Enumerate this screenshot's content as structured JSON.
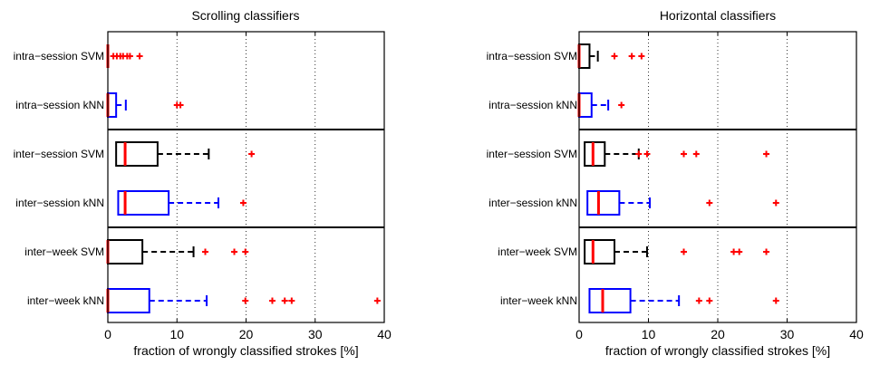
{
  "chart_data": [
    {
      "type": "boxplot",
      "title": "Scrolling classifiers",
      "xlabel": "fraction of wrongly classified strokes [%]",
      "ylabel": "",
      "xlim": [
        0,
        40
      ],
      "xticks": [
        "0",
        "10",
        "20",
        "30",
        "40"
      ],
      "grid": "vertical dotted",
      "group_separators_after": [
        2,
        4
      ],
      "categories": [
        "intra−session SVM",
        "intra−session kNN",
        "inter−session SVM",
        "inter−session kNN",
        "inter−week SVM",
        "inter−week kNN"
      ],
      "boxes": [
        {
          "label": "intra−session SVM",
          "color": "#000000",
          "whisker_low": 0,
          "q1": 0,
          "median": 0,
          "q3": 0,
          "whisker_high": 0,
          "outliers": [
            0.8,
            1.3,
            1.8,
            2.2,
            2.8,
            3.2,
            4.6
          ]
        },
        {
          "label": "intra−session kNN",
          "color": "#0000ff",
          "whisker_low": 0,
          "q1": 0,
          "median": 0,
          "q3": 1.2,
          "whisker_high": 2.6,
          "outliers": [
            10.0,
            10.5
          ]
        },
        {
          "label": "inter−session SVM",
          "color": "#000000",
          "whisker_low": 1.2,
          "q1": 1.2,
          "median": 2.5,
          "q3": 7.2,
          "whisker_high": 14.6,
          "outliers": [
            20.8
          ]
        },
        {
          "label": "inter−session kNN",
          "color": "#0000ff",
          "whisker_low": 1.5,
          "q1": 1.5,
          "median": 2.5,
          "q3": 8.8,
          "whisker_high": 16.0,
          "outliers": [
            19.6
          ]
        },
        {
          "label": "inter−week SVM",
          "color": "#000000",
          "whisker_low": 0,
          "q1": 0,
          "median": 0,
          "q3": 5.0,
          "whisker_high": 12.4,
          "outliers": [
            14.1,
            18.3,
            19.9
          ]
        },
        {
          "label": "inter−week kNN",
          "color": "#0000ff",
          "whisker_low": 0,
          "q1": 0,
          "median": 0,
          "q3": 6.0,
          "whisker_high": 14.3,
          "outliers": [
            19.9,
            23.8,
            25.6,
            26.6,
            39.0
          ]
        }
      ]
    },
    {
      "type": "boxplot",
      "title": "Horizontal classifiers",
      "xlabel": "fraction of wrongly classified strokes [%]",
      "ylabel": "",
      "xlim": [
        0,
        40
      ],
      "xticks": [
        "0",
        "10",
        "20",
        "30",
        "40"
      ],
      "grid": "vertical dotted",
      "group_separators_after": [
        2,
        4
      ],
      "categories": [
        "intra−session SVM",
        "intra−session kNN",
        "inter−session SVM",
        "inter−session kNN",
        "inter−week SVM",
        "inter−week kNN"
      ],
      "boxes": [
        {
          "label": "intra−session SVM",
          "color": "#000000",
          "whisker_low": 0,
          "q1": 0,
          "median": 0,
          "q3": 1.5,
          "whisker_high": 2.7,
          "outliers": [
            5.1,
            7.6,
            9.0
          ]
        },
        {
          "label": "intra−session kNN",
          "color": "#0000ff",
          "whisker_low": 0,
          "q1": 0,
          "median": 0,
          "q3": 1.8,
          "whisker_high": 4.2,
          "outliers": [
            6.1
          ]
        },
        {
          "label": "inter−session SVM",
          "color": "#000000",
          "whisker_low": 0.8,
          "q1": 0.8,
          "median": 2.0,
          "q3": 3.7,
          "whisker_high": 8.6,
          "outliers": [
            8.6,
            9.8,
            15.1,
            16.9,
            27.0
          ]
        },
        {
          "label": "inter−session kNN",
          "color": "#0000ff",
          "whisker_low": 1.2,
          "q1": 1.2,
          "median": 2.8,
          "q3": 5.8,
          "whisker_high": 10.2,
          "outliers": [
            18.8,
            28.4
          ]
        },
        {
          "label": "inter−week SVM",
          "color": "#000000",
          "whisker_low": 0.8,
          "q1": 0.8,
          "median": 2.0,
          "q3": 5.1,
          "whisker_high": 9.8,
          "outliers": [
            15.1,
            22.3,
            23.1,
            27.0
          ]
        },
        {
          "label": "inter−week kNN",
          "color": "#0000ff",
          "whisker_low": 1.5,
          "q1": 1.5,
          "median": 3.4,
          "q3": 7.4,
          "whisker_high": 14.4,
          "outliers": [
            17.3,
            18.8,
            28.4
          ]
        }
      ]
    }
  ]
}
